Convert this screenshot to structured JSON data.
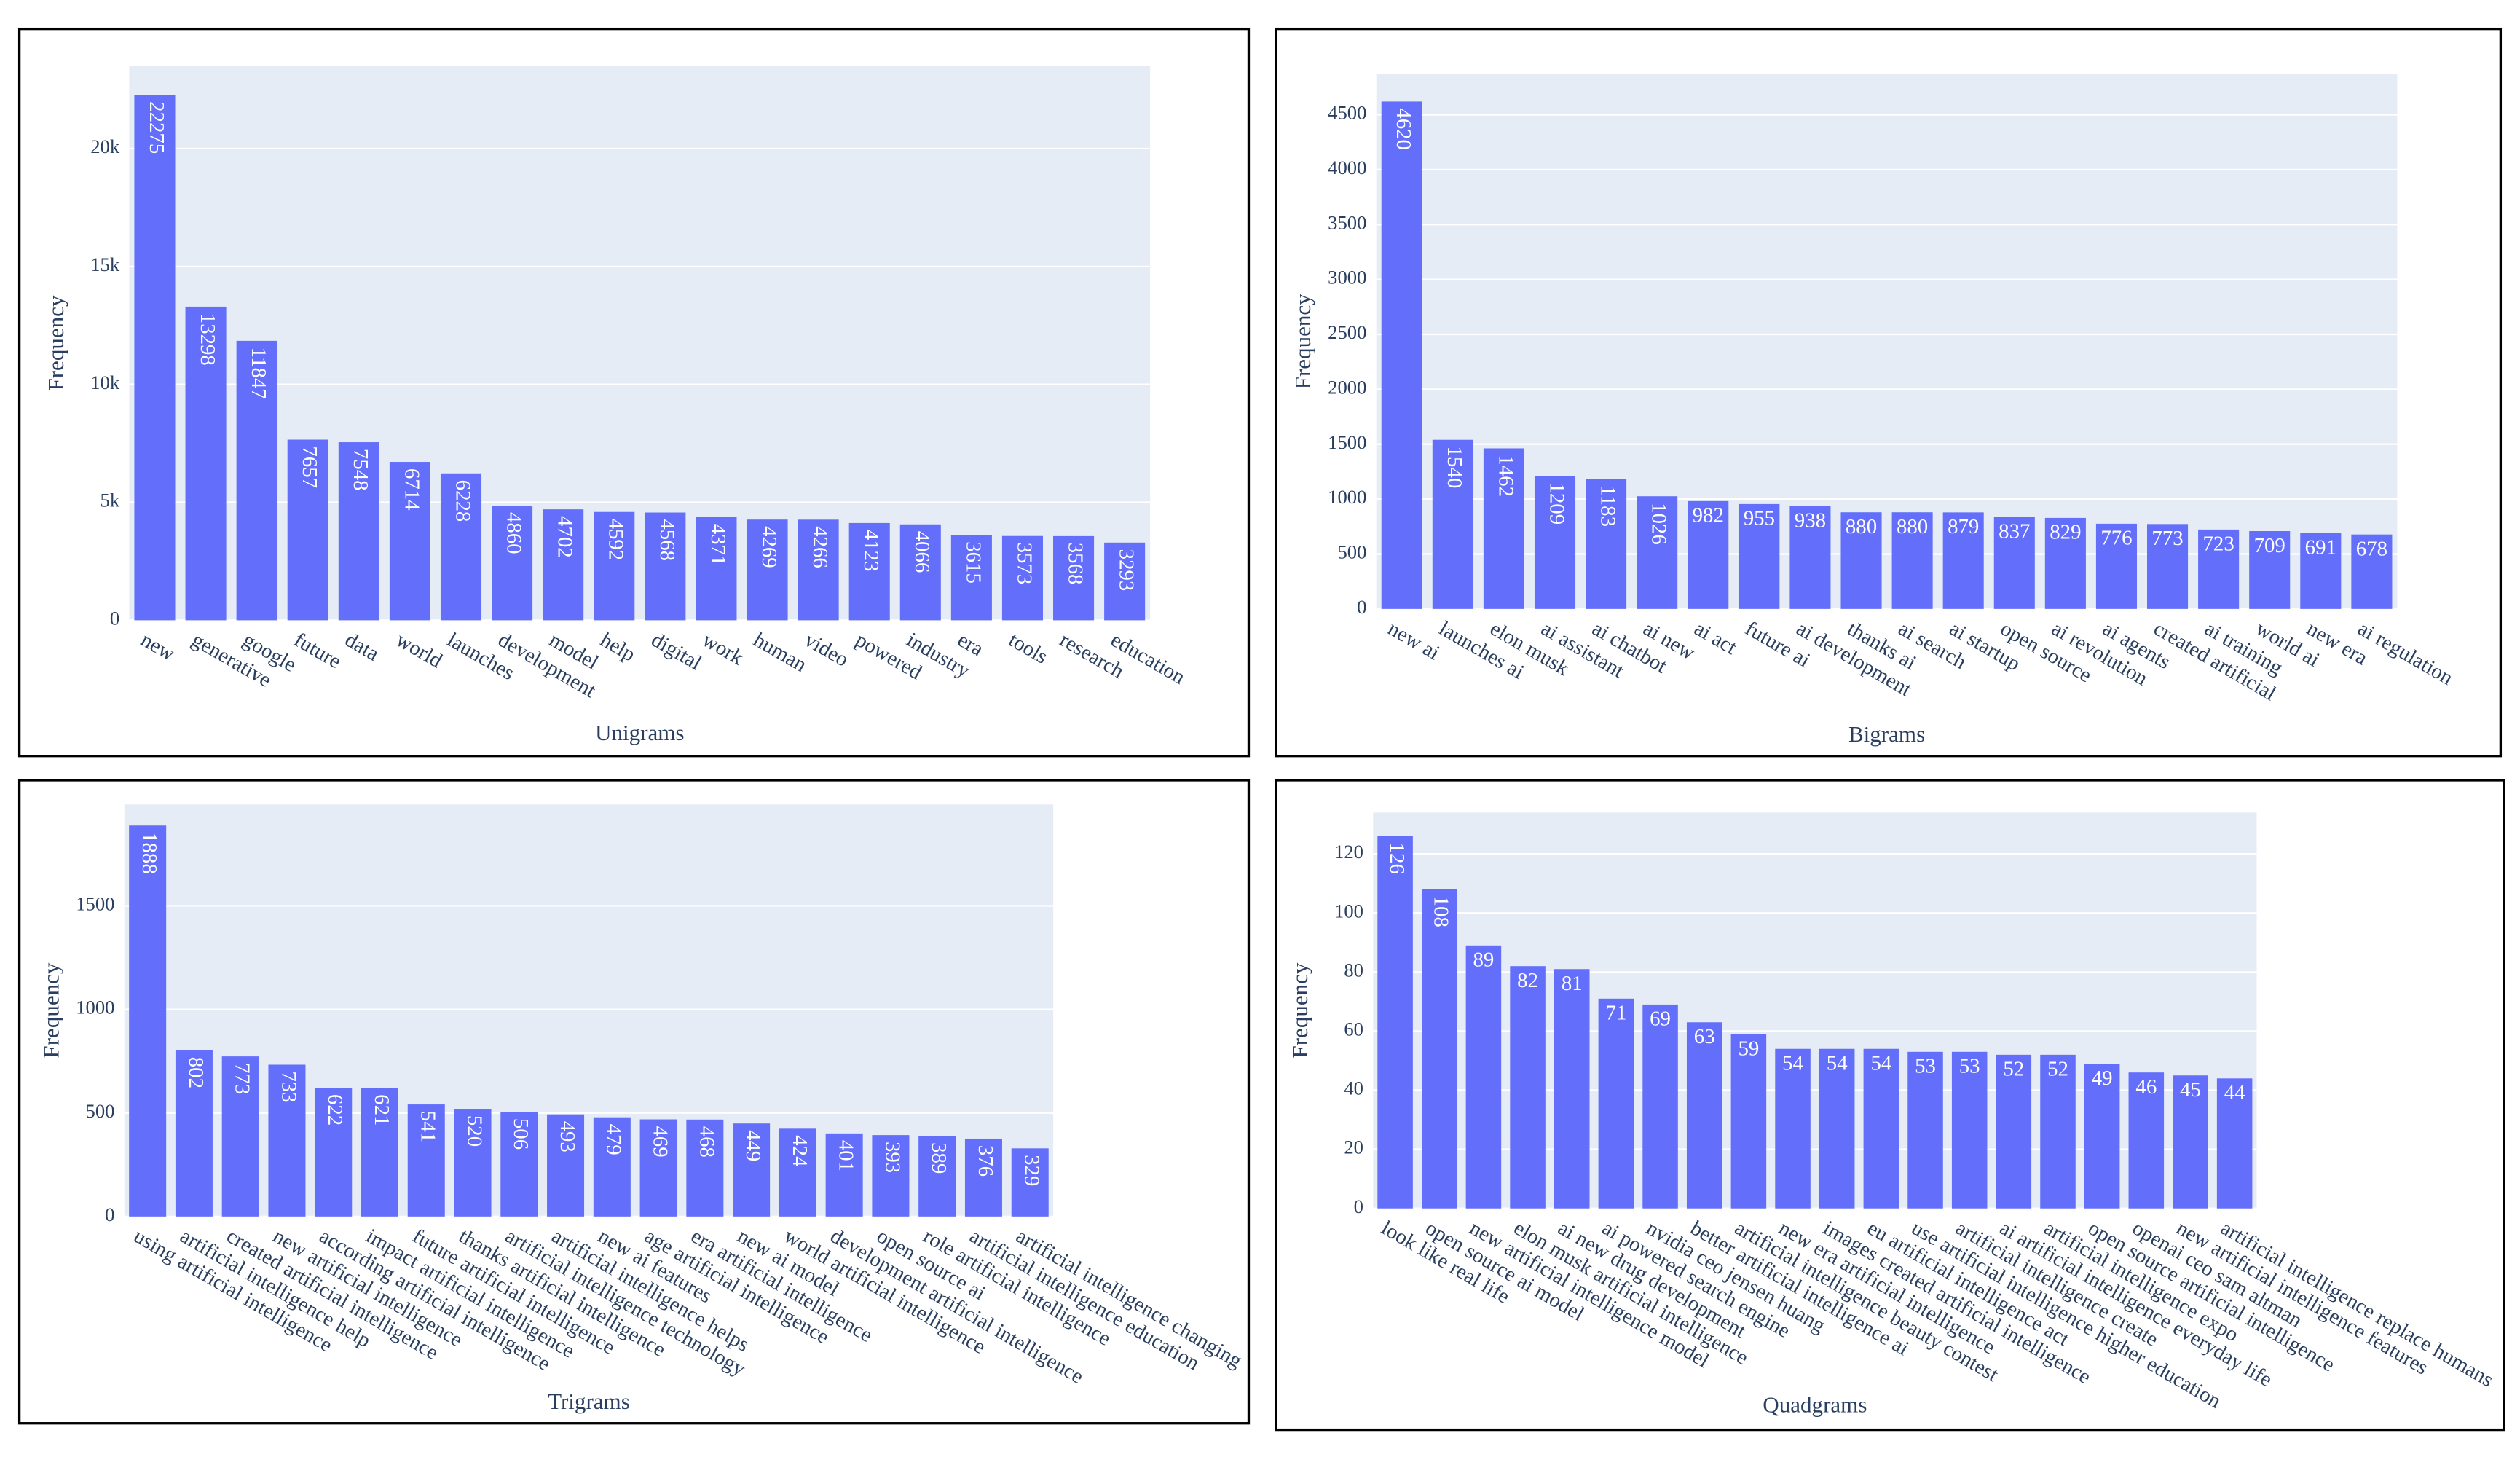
{
  "chart_data": [
    {
      "type": "bar",
      "x_label": "Unigrams",
      "y_label": "Frequency",
      "color": "#636efa",
      "grid": true,
      "categories": [
        "new",
        "generative",
        "google",
        "future",
        "data",
        "world",
        "launches",
        "development",
        "model",
        "help",
        "digital",
        "work",
        "human",
        "video",
        "powered",
        "industry",
        "era",
        "tools",
        "research",
        "education"
      ],
      "values": [
        22275,
        13298,
        11847,
        7657,
        7548,
        6714,
        6228,
        4860,
        4702,
        4592,
        4568,
        4371,
        4269,
        4266,
        4123,
        4066,
        3615,
        3573,
        3568,
        3293
      ],
      "ylim": [
        0,
        23500
      ],
      "yticks": [
        0,
        {
          "value": 5000,
          "label": "5k"
        },
        {
          "value": 10000,
          "label": "10k"
        },
        {
          "value": 15000,
          "label": "15k"
        },
        {
          "value": 20000,
          "label": "20k"
        }
      ]
    },
    {
      "type": "bar",
      "x_label": "Bigrams",
      "y_label": "Frequency",
      "color": "#636efa",
      "grid": true,
      "categories": [
        "new ai",
        "launches ai",
        "elon musk",
        "ai assistant",
        "ai chatbot",
        "ai new",
        "ai act",
        "future ai",
        "ai development",
        "thanks ai",
        "ai search",
        "ai startup",
        "open source",
        "ai revolution",
        "ai agents",
        "created artificial",
        "ai training",
        "world ai",
        "new era",
        "ai regulation"
      ],
      "values": [
        4620,
        1540,
        1462,
        1209,
        1183,
        1026,
        982,
        955,
        938,
        880,
        880,
        879,
        837,
        829,
        776,
        773,
        723,
        709,
        691,
        678
      ],
      "ylim": [
        0,
        4870
      ],
      "yticks": [
        0,
        500,
        1000,
        1500,
        2000,
        2500,
        3000,
        3500,
        4000,
        4500
      ]
    },
    {
      "type": "bar",
      "x_label": "Trigrams",
      "y_label": "Frequency",
      "color": "#636efa",
      "grid": true,
      "categories": [
        "using artificial intelligence",
        "artificial intelligence help",
        "created artificial intelligence",
        "new artificial intelligence",
        "according artificial intelligence",
        "impact artificial intelligence",
        "future artificial intelligence",
        "thanks artificial intelligence",
        "artificial intelligence technology",
        "artificial intelligence helps",
        "new ai features",
        "age artificial intelligence",
        "era artificial intelligence",
        "new ai model",
        "world artificial intelligence",
        "development artificial intelligence",
        "open source ai",
        "role artificial intelligence",
        "artificial intelligence education",
        "artificial intelligence changing"
      ],
      "values": [
        1888,
        802,
        773,
        733,
        622,
        621,
        541,
        520,
        506,
        493,
        479,
        469,
        468,
        449,
        424,
        401,
        393,
        389,
        376,
        329
      ],
      "ylim": [
        0,
        1990
      ],
      "yticks": [
        0,
        500,
        1000,
        1500
      ]
    },
    {
      "type": "bar",
      "x_label": "Quadgrams",
      "y_label": "Frequency",
      "color": "#636efa",
      "grid": true,
      "categories": [
        "look like real life",
        "open source ai model",
        "new artificial intelligence model",
        "elon musk artificial intelligence",
        "ai new drug development",
        "ai powered search engine",
        "nvidia ceo jensen huang",
        "better artificial intelligence ai",
        "artificial intelligence beauty contest",
        "new era artificial intelligence",
        "images created artificial intelligence",
        "eu artificial intelligence act",
        "use artificial intelligence higher education",
        "artificial intelligence create",
        "ai artificial intelligence everyday life",
        "artificial intelligence expo",
        "open source artificial intelligence",
        "openai ceo sam altman",
        "new artificial intelligence features",
        "artificial intelligence replace humans"
      ],
      "values": [
        126,
        108,
        89,
        82,
        81,
        71,
        69,
        63,
        59,
        54,
        54,
        54,
        53,
        53,
        52,
        52,
        49,
        46,
        45,
        44
      ],
      "ylim": [
        0,
        134
      ],
      "yticks": [
        0,
        20,
        40,
        60,
        80,
        100,
        120
      ]
    }
  ]
}
